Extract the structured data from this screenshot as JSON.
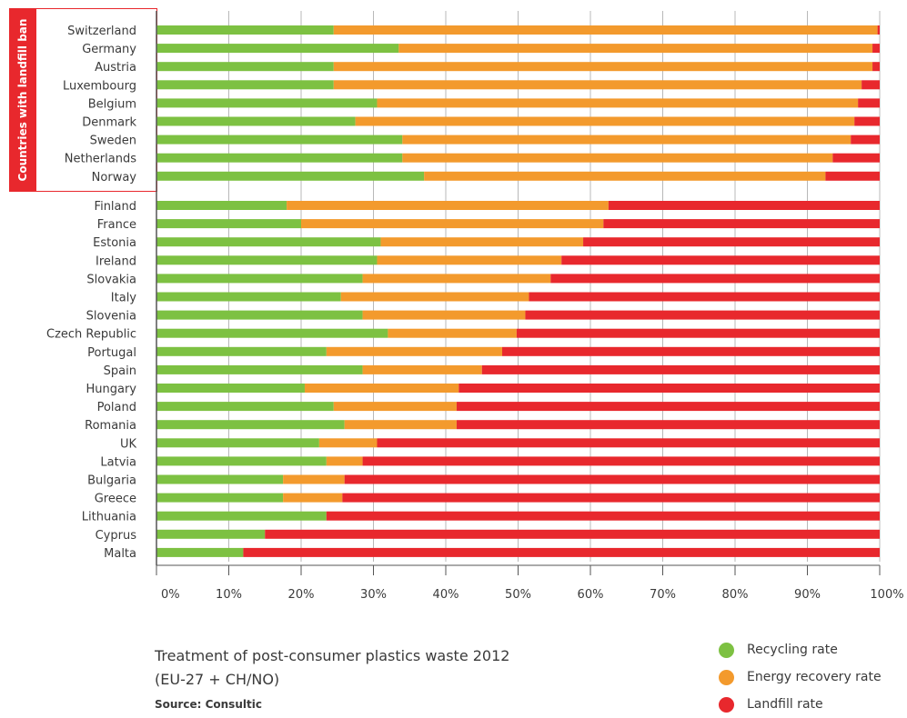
{
  "chart_data": {
    "type": "bar",
    "orientation": "horizontal",
    "stacked": true,
    "title": "Treatment of post-consumer plastics waste 2012",
    "subtitle": "(EU-27 + CH/NO)",
    "source": "Source: Consultic",
    "group_label": "Countries with landfill ban",
    "categories": [
      "Switzerland",
      "Germany",
      "Austria",
      "Luxembourg",
      "Belgium",
      "Denmark",
      "Sweden",
      "Netherlands",
      "Norway",
      "Finland",
      "France",
      "Estonia",
      "Ireland",
      "Slovakia",
      "Italy",
      "Slovenia",
      "Czech Republic",
      "Portugal",
      "Spain",
      "Hungary",
      "Poland",
      "Romania",
      "UK",
      "Latvia",
      "Bulgaria",
      "Greece",
      "Lithuania",
      "Cyprus",
      "Malta"
    ],
    "series": [
      {
        "name": "Recycling rate",
        "color": "#7dc142",
        "values": [
          24.5,
          33.5,
          24.5,
          24.5,
          30.5,
          27.5,
          34,
          34,
          37,
          18,
          20,
          31,
          30.5,
          28.5,
          25.5,
          28.5,
          32,
          23.5,
          28.5,
          20.5,
          24.5,
          26,
          22.5,
          23.5,
          17.5,
          17.5,
          23.5,
          15,
          12
        ]
      },
      {
        "name": "Energy recovery rate",
        "color": "#f39a2d",
        "values": [
          75.2,
          65.5,
          74.5,
          73,
          66.5,
          69,
          62,
          59.5,
          55.5,
          44.5,
          41.8,
          28,
          25.5,
          26,
          26,
          22.5,
          17.8,
          24.3,
          16.5,
          21.3,
          17,
          15.5,
          8,
          5,
          8.5,
          8.2,
          0,
          0,
          0
        ]
      },
      {
        "name": "Landfill rate",
        "color": "#e8282d",
        "values": [
          0.3,
          1,
          1,
          2.5,
          3,
          3.5,
          4,
          6.5,
          7.5,
          37.5,
          38.2,
          41,
          44,
          45.5,
          48.5,
          49,
          50.2,
          52.2,
          55,
          58.2,
          58.5,
          58.5,
          69.5,
          71.5,
          74,
          74.3,
          76.5,
          85,
          88
        ]
      }
    ],
    "landfill_ban_count": 9,
    "x_ticks": [
      "0%",
      "10%",
      "20%",
      "30%",
      "40%",
      "50%",
      "60%",
      "70%",
      "80%",
      "90%",
      "100%"
    ],
    "xlim": [
      0,
      100
    ],
    "grid": true,
    "legend_position": "bottom-right"
  }
}
